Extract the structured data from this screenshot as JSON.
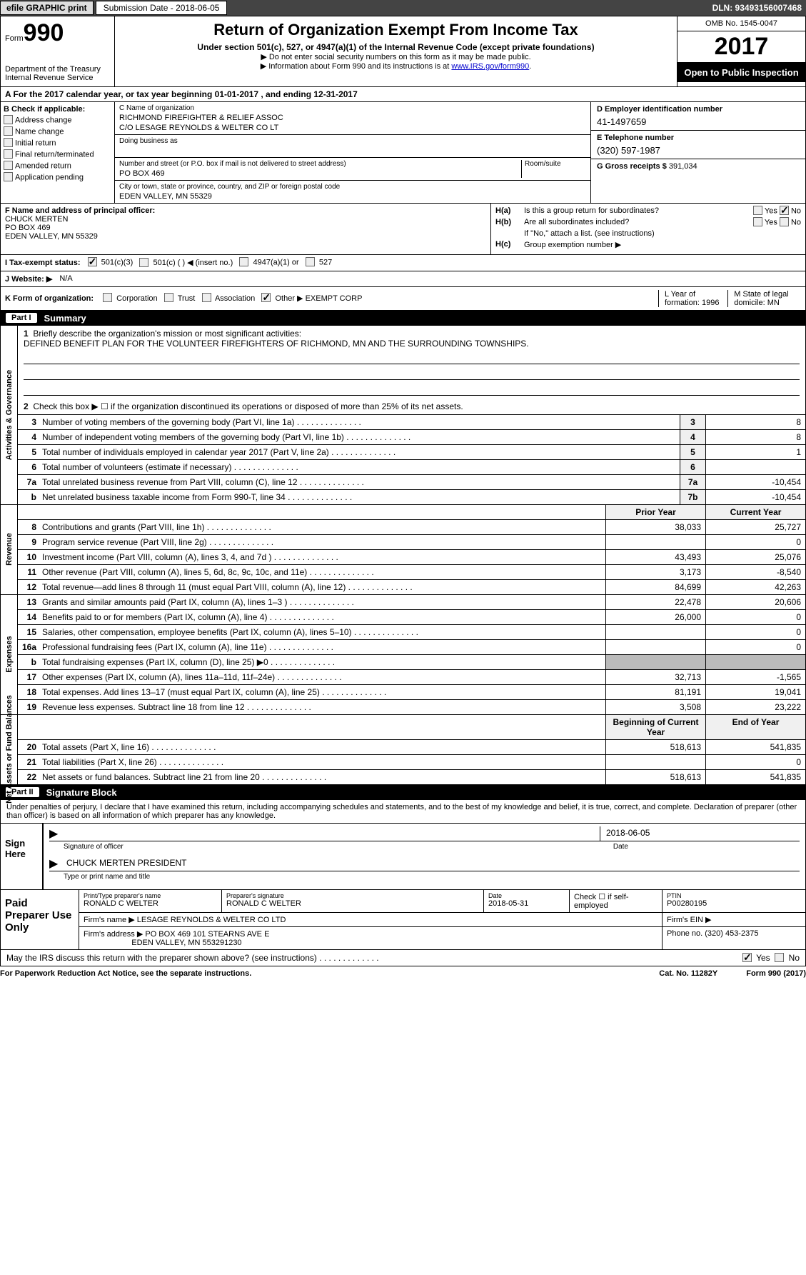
{
  "topbar": {
    "efile": "efile GRAPHIC print",
    "sub_label": "Submission Date - ",
    "sub_date": "2018-06-05",
    "dln": "DLN: 93493156007468"
  },
  "header": {
    "form_label": "Form",
    "form_num": "990",
    "dept1": "Department of the Treasury",
    "dept2": "Internal Revenue Service",
    "title": "Return of Organization Exempt From Income Tax",
    "sub1": "Under section 501(c), 527, or 4947(a)(1) of the Internal Revenue Code (except private foundations)",
    "sub2": "▶ Do not enter social security numbers on this form as it may be made public.",
    "sub3_pre": "▶ Information about Form 990 and its instructions is at ",
    "sub3_link": "www.IRS.gov/form990",
    "omb": "OMB No. 1545-0047",
    "year": "2017",
    "open": "Open to Public Inspection"
  },
  "rowA": "A  For the 2017 calendar year, or tax year beginning 01-01-2017   , and ending 12-31-2017",
  "B": {
    "hdr": "B Check if applicable:",
    "i1": "Address change",
    "i2": "Name change",
    "i3": "Initial return",
    "i4": "Final return/terminated",
    "i5": "Amended return",
    "i6": "Application pending"
  },
  "C": {
    "name_lbl": "C Name of organization",
    "name1": "RICHMOND FIREFIGHTER & RELIEF ASSOC",
    "name2": "C/O LESAGE REYNOLDS & WELTER CO LT",
    "dba_lbl": "Doing business as",
    "addr_lbl": "Number and street (or P.O. box if mail is not delivered to street address)",
    "room_lbl": "Room/suite",
    "addr": "PO BOX 469",
    "city_lbl": "City or town, state or province, country, and ZIP or foreign postal code",
    "city": "EDEN VALLEY, MN  55329"
  },
  "D": {
    "lbl": "D Employer identification number",
    "val": "41-1497659"
  },
  "E": {
    "lbl": "E Telephone number",
    "val": "(320) 597-1987"
  },
  "G": {
    "lbl": "G Gross receipts $ ",
    "val": "391,034"
  },
  "F": {
    "lbl": "F  Name and address of principal officer:",
    "l1": "CHUCK MERTEN",
    "l2": "PO BOX 469",
    "l3": "EDEN VALLEY, MN  55329"
  },
  "H": {
    "a_lbl": "H(a)",
    "a_txt": "Is this a group return for subordinates?",
    "b_lbl": "H(b)",
    "b_txt": "Are all subordinates included?",
    "b_note": "If \"No,\" attach a list. (see instructions)",
    "c_lbl": "H(c)",
    "c_txt": "Group exemption number ▶",
    "yes": "Yes",
    "no": "No"
  },
  "I": {
    "lbl": "I  Tax-exempt status:",
    "o1": "501(c)(3)",
    "o2": "501(c) (  ) ◀ (insert no.)",
    "o3": "4947(a)(1) or",
    "o4": "527"
  },
  "J": {
    "lbl": "J  Website: ▶",
    "val": "N/A"
  },
  "K": {
    "lbl": "K Form of organization:",
    "o1": "Corporation",
    "o2": "Trust",
    "o3": "Association",
    "o4": "Other ▶",
    "o4v": "EXEMPT CORP",
    "L": "L Year of formation: 1996",
    "M": "M State of legal domicile: MN"
  },
  "part1": {
    "title": "Summary",
    "q1_lbl": "1",
    "q1": "Briefly describe the organization's mission or most significant activities:",
    "q1v": "DEFINED BENEFIT PLAN FOR THE VOLUNTEER FIREFIGHTERS OF RICHMOND, MN AND THE SURROUNDING TOWNSHIPS.",
    "q2_lbl": "2",
    "q2": "Check this box ▶ ☐  if the organization discontinued its operations or disposed of more than 25% of its net assets.",
    "rows_ag": [
      {
        "n": "3",
        "t": "Number of voting members of the governing body (Part VI, line 1a)",
        "cn": "3",
        "v": "8"
      },
      {
        "n": "4",
        "t": "Number of independent voting members of the governing body (Part VI, line 1b)",
        "cn": "4",
        "v": "8"
      },
      {
        "n": "5",
        "t": "Total number of individuals employed in calendar year 2017 (Part V, line 2a)",
        "cn": "5",
        "v": "1"
      },
      {
        "n": "6",
        "t": "Total number of volunteers (estimate if necessary)",
        "cn": "6",
        "v": ""
      },
      {
        "n": "7a",
        "t": "Total unrelated business revenue from Part VIII, column (C), line 12",
        "cn": "7a",
        "v": "-10,454"
      },
      {
        "n": "b",
        "t": "Net unrelated business taxable income from Form 990-T, line 34",
        "cn": "7b",
        "v": "-10,454"
      }
    ],
    "col_py": "Prior Year",
    "col_cy": "Current Year",
    "rows_rev": [
      {
        "n": "8",
        "t": "Contributions and grants (Part VIII, line 1h)",
        "py": "38,033",
        "cy": "25,727"
      },
      {
        "n": "9",
        "t": "Program service revenue (Part VIII, line 2g)",
        "py": "",
        "cy": "0"
      },
      {
        "n": "10",
        "t": "Investment income (Part VIII, column (A), lines 3, 4, and 7d )",
        "py": "43,493",
        "cy": "25,076"
      },
      {
        "n": "11",
        "t": "Other revenue (Part VIII, column (A), lines 5, 6d, 8c, 9c, 10c, and 11e)",
        "py": "3,173",
        "cy": "-8,540"
      },
      {
        "n": "12",
        "t": "Total revenue—add lines 8 through 11 (must equal Part VIII, column (A), line 12)",
        "py": "84,699",
        "cy": "42,263"
      }
    ],
    "rows_exp": [
      {
        "n": "13",
        "t": "Grants and similar amounts paid (Part IX, column (A), lines 1–3 )",
        "py": "22,478",
        "cy": "20,606"
      },
      {
        "n": "14",
        "t": "Benefits paid to or for members (Part IX, column (A), line 4)",
        "py": "26,000",
        "cy": "0"
      },
      {
        "n": "15",
        "t": "Salaries, other compensation, employee benefits (Part IX, column (A), lines 5–10)",
        "py": "",
        "cy": "0"
      },
      {
        "n": "16a",
        "t": "Professional fundraising fees (Part IX, column (A), line 11e)",
        "py": "",
        "cy": "0"
      },
      {
        "n": "b",
        "t": "Total fundraising expenses (Part IX, column (D), line 25) ▶0",
        "py": "g",
        "cy": "g"
      },
      {
        "n": "17",
        "t": "Other expenses (Part IX, column (A), lines 11a–11d, 11f–24e)",
        "py": "32,713",
        "cy": "-1,565"
      },
      {
        "n": "18",
        "t": "Total expenses. Add lines 13–17 (must equal Part IX, column (A), line 25)",
        "py": "81,191",
        "cy": "19,041"
      },
      {
        "n": "19",
        "t": "Revenue less expenses. Subtract line 18 from line 12",
        "py": "3,508",
        "cy": "23,222"
      }
    ],
    "col_boy": "Beginning of Current Year",
    "col_eoy": "End of Year",
    "rows_na": [
      {
        "n": "20",
        "t": "Total assets (Part X, line 16)",
        "py": "518,613",
        "cy": "541,835"
      },
      {
        "n": "21",
        "t": "Total liabilities (Part X, line 26)",
        "py": "",
        "cy": "0"
      },
      {
        "n": "22",
        "t": "Net assets or fund balances. Subtract line 21 from line 20",
        "py": "518,613",
        "cy": "541,835"
      }
    ],
    "tab_ag": "Activities & Governance",
    "tab_rev": "Revenue",
    "tab_exp": "Expenses",
    "tab_na": "Net Assets or Fund Balances"
  },
  "part2": {
    "title": "Signature Block",
    "perjury": "Under penalties of perjury, I declare that I have examined this return, including accompanying schedules and statements, and to the best of my knowledge and belief, it is true, correct, and complete. Declaration of preparer (other than officer) is based on all information of which preparer has any knowledge.",
    "sign_here": "Sign Here",
    "sig_date": "2018-06-05",
    "sig_lbl": "Signature of officer",
    "date_lbl": "Date",
    "name": "CHUCK MERTEN  PRESIDENT",
    "name_lbl": "Type or print name and title"
  },
  "paid": {
    "title": "Paid Preparer Use Only",
    "c1_lbl": "Print/Type preparer's name",
    "c1": "RONALD C WELTER",
    "c2_lbl": "Preparer's signature",
    "c2": "RONALD C WELTER",
    "c3_lbl": "Date",
    "c3": "2018-05-31",
    "c4_lbl": "Check ☐ if self-employed",
    "c5_lbl": "PTIN",
    "c5": "P00280195",
    "firm_lbl": "Firm's name    ▶",
    "firm": "LESAGE REYNOLDS & WELTER CO LTD",
    "ein_lbl": "Firm's EIN ▶",
    "addr_lbl": "Firm's address ▶",
    "addr1": "PO BOX 469 101 STEARNS AVE E",
    "addr2": "EDEN VALLEY, MN  553291230",
    "phone_lbl": "Phone no. ",
    "phone": "(320) 453-2375"
  },
  "irs": {
    "txt": "May the IRS discuss this return with the preparer shown above? (see instructions)",
    "yes": "Yes",
    "no": "No"
  },
  "foot": {
    "f1": "For Paperwork Reduction Act Notice, see the separate instructions.",
    "f2": "Cat. No. 11282Y",
    "f3": "Form 990 (2017)"
  }
}
